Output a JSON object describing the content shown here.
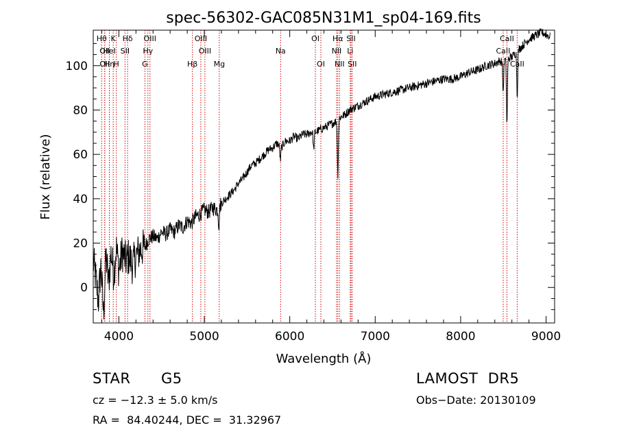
{
  "chart_data": {
    "type": "line",
    "title": "spec-56302-GAC085N31M1_sp04-169.fits",
    "xlabel": "Wavelength (Å)",
    "ylabel": "Flux (relative)",
    "xlim": [
      3700,
      9100
    ],
    "ylim": [
      -16,
      116
    ],
    "x_ticks": [
      4000,
      5000,
      6000,
      7000,
      8000,
      9000
    ],
    "y_ticks": [
      0,
      20,
      40,
      60,
      80,
      100
    ],
    "grid": false,
    "line_color": "#000000",
    "marker_color": "#cc0000",
    "series": [
      {
        "points": [
          [
            3700,
            12
          ],
          [
            3730,
            4
          ],
          [
            3760,
            -6
          ],
          [
            3790,
            10
          ],
          [
            3820,
            -12
          ],
          [
            3850,
            14
          ],
          [
            3880,
            2
          ],
          [
            3910,
            16
          ],
          [
            3940,
            6
          ],
          [
            3970,
            18
          ],
          [
            4000,
            8
          ],
          [
            4040,
            16
          ],
          [
            4080,
            12
          ],
          [
            4120,
            14
          ],
          [
            4160,
            10
          ],
          [
            4200,
            14
          ],
          [
            4250,
            17
          ],
          [
            4300,
            18
          ],
          [
            4350,
            22
          ],
          [
            4400,
            23
          ],
          [
            4450,
            22
          ],
          [
            4500,
            25
          ],
          [
            4550,
            24
          ],
          [
            4600,
            26
          ],
          [
            4650,
            25
          ],
          [
            4700,
            28
          ],
          [
            4750,
            27
          ],
          [
            4800,
            30
          ],
          [
            4850,
            29
          ],
          [
            4900,
            32
          ],
          [
            4950,
            33
          ],
          [
            5000,
            35
          ],
          [
            5050,
            34
          ],
          [
            5100,
            36
          ],
          [
            5150,
            35
          ],
          [
            5200,
            38
          ],
          [
            5250,
            40
          ],
          [
            5300,
            42
          ],
          [
            5350,
            44
          ],
          [
            5400,
            47
          ],
          [
            5450,
            49
          ],
          [
            5500,
            52
          ],
          [
            5550,
            55
          ],
          [
            5600,
            56
          ],
          [
            5650,
            58
          ],
          [
            5700,
            60
          ],
          [
            5750,
            62
          ],
          [
            5800,
            63
          ],
          [
            5850,
            65
          ],
          [
            5900,
            63
          ],
          [
            5950,
            66
          ],
          [
            6000,
            66
          ],
          [
            6050,
            68
          ],
          [
            6100,
            67
          ],
          [
            6150,
            69
          ],
          [
            6200,
            69
          ],
          [
            6250,
            70
          ],
          [
            6300,
            70
          ],
          [
            6350,
            71
          ],
          [
            6400,
            72
          ],
          [
            6450,
            73
          ],
          [
            6500,
            74
          ],
          [
            6550,
            75
          ],
          [
            6600,
            77
          ],
          [
            6650,
            78
          ],
          [
            6700,
            80
          ],
          [
            6750,
            81
          ],
          [
            6800,
            82
          ],
          [
            6850,
            83
          ],
          [
            6900,
            84
          ],
          [
            6950,
            85
          ],
          [
            7000,
            86
          ],
          [
            7100,
            87
          ],
          [
            7200,
            88
          ],
          [
            7300,
            89
          ],
          [
            7400,
            90
          ],
          [
            7500,
            91
          ],
          [
            7600,
            92
          ],
          [
            7700,
            93
          ],
          [
            7800,
            94
          ],
          [
            7900,
            94
          ],
          [
            8000,
            95
          ],
          [
            8100,
            97
          ],
          [
            8200,
            98
          ],
          [
            8300,
            100
          ],
          [
            8400,
            101
          ],
          [
            8450,
            102
          ],
          [
            8500,
            102
          ],
          [
            8550,
            103
          ],
          [
            8600,
            104
          ],
          [
            8650,
            106
          ],
          [
            8700,
            108
          ],
          [
            8750,
            110
          ],
          [
            8800,
            112
          ],
          [
            8850,
            113
          ],
          [
            8900,
            114
          ],
          [
            8950,
            115
          ],
          [
            9000,
            114
          ],
          [
            9050,
            113
          ]
        ]
      }
    ],
    "absorption_dips": [
      {
        "x": 5170,
        "depth": 8
      },
      {
        "x": 5890,
        "depth": 6
      },
      {
        "x": 6280,
        "depth": 8
      },
      {
        "x": 6563,
        "depth": 25
      },
      {
        "x": 8498,
        "depth": 14
      },
      {
        "x": 8542,
        "depth": 30
      },
      {
        "x": 8662,
        "depth": 20
      }
    ],
    "line_markers": [
      {
        "x": 3798,
        "label": "Hθ",
        "row": 0
      },
      {
        "x": 3835,
        "label": "OII",
        "row": 1
      },
      {
        "x": 3835,
        "label": "OII",
        "row": 2
      },
      {
        "x": 3889,
        "label": "Hη",
        "row": 2
      },
      {
        "x": 3889,
        "label": "HeI",
        "row": 1
      },
      {
        "x": 3934,
        "label": "K",
        "row": 0
      },
      {
        "x": 3970,
        "label": "H",
        "row": 2
      },
      {
        "x": 4102,
        "label": "Hδ",
        "row": 0
      },
      {
        "x": 4072,
        "label": "SII",
        "row": 1
      },
      {
        "x": 4340,
        "label": "Hγ",
        "row": 1
      },
      {
        "x": 4364,
        "label": "OIII",
        "row": 0
      },
      {
        "x": 4305,
        "label": "G",
        "row": 2
      },
      {
        "x": 4861,
        "label": "Hβ",
        "row": 2
      },
      {
        "x": 4959,
        "label": "OIII",
        "row": 0
      },
      {
        "x": 5007,
        "label": "OIII",
        "row": 1
      },
      {
        "x": 5175,
        "label": "Mg",
        "row": 2
      },
      {
        "x": 5893,
        "label": "Na",
        "row": 1
      },
      {
        "x": 6300,
        "label": "OI",
        "row": 0
      },
      {
        "x": 6364,
        "label": "OI",
        "row": 2
      },
      {
        "x": 6563,
        "label": "Hα",
        "row": 0
      },
      {
        "x": 6548,
        "label": "NII",
        "row": 1
      },
      {
        "x": 6583,
        "label": "NII",
        "row": 2
      },
      {
        "x": 6717,
        "label": "SII",
        "row": 0
      },
      {
        "x": 6708,
        "label": "Li",
        "row": 1
      },
      {
        "x": 6731,
        "label": "SII",
        "row": 2
      },
      {
        "x": 8498,
        "label": "CaII",
        "row": 1
      },
      {
        "x": 8542,
        "label": "CaII",
        "row": 0
      },
      {
        "x": 8662,
        "label": "CaII",
        "row": 2
      }
    ]
  },
  "footer": {
    "object_class": "STAR",
    "subclass": "G5",
    "survey": "LAMOST  DR5",
    "cz": "cz = −12.3 ± 5.0 km/s",
    "obs_date": "Obs−Date: 20130109",
    "coords": "RA =  84.40244, DEC =  31.32967"
  }
}
